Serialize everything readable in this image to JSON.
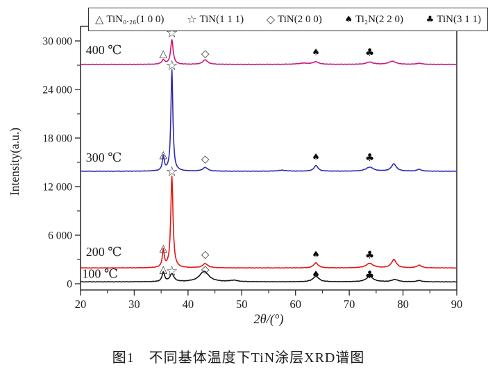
{
  "figure": {
    "caption": "图1　不同基体温度下TiN涂层XRD谱图"
  },
  "chart_data": {
    "type": "line",
    "title": "",
    "xlabel": "2θ/(°)",
    "ylabel": "Intensity(a.u.)",
    "xlim": [
      20,
      90
    ],
    "ylim": [
      0,
      31800
    ],
    "grid": false,
    "x_ticks": [
      20,
      30,
      40,
      50,
      60,
      70,
      80,
      90
    ],
    "x_minor_ticks": [
      25,
      35,
      45,
      55,
      65,
      75,
      85
    ],
    "y_ticks": [
      0,
      6000,
      12000,
      18000,
      24000,
      30000
    ],
    "y_tick_labels": [
      "0",
      "6 000",
      "12 000",
      "18 000",
      "24 000",
      "30 000"
    ],
    "y_minor_ticks": [
      3000,
      9000,
      15000,
      21000,
      27000
    ],
    "legend": {
      "position": "top",
      "items": [
        {
          "symbol": "△",
          "label": "TiN₀.₂₆(1 0 0)",
          "filled": false
        },
        {
          "symbol": "☆",
          "label": "TiN(1 1 1)",
          "filled": false
        },
        {
          "symbol": "◇",
          "label": "TiN(2 0 0)",
          "filled": false
        },
        {
          "symbol": "♠",
          "label": "Ti₂N(2 2 0)",
          "filled": true
        },
        {
          "symbol": "♣",
          "label": "TiN(3 1 1)",
          "filled": true
        }
      ]
    },
    "series": [
      {
        "name": "400 ℃",
        "color": "#c9177e",
        "baseline": 27100,
        "label_x": 21.0,
        "label_y": 28900,
        "peaks": [
          [
            35.4,
            520,
            0.35
          ],
          [
            37.0,
            3050,
            0.28
          ],
          [
            43.2,
            560,
            0.55
          ],
          [
            61.5,
            140,
            1.3
          ],
          [
            63.8,
            300,
            0.6
          ],
          [
            73.8,
            280,
            0.75
          ],
          [
            78.0,
            380,
            0.8
          ],
          [
            83.0,
            130,
            0.6
          ]
        ]
      },
      {
        "name": "300 ℃",
        "color": "#2b2bae",
        "baseline": 13900,
        "label_x": 21.0,
        "label_y": 15600,
        "peaks": [
          [
            35.4,
            1800,
            0.22
          ],
          [
            37.0,
            12500,
            0.22
          ],
          [
            43.2,
            460,
            0.55
          ],
          [
            57.5,
            120,
            0.9
          ],
          [
            63.8,
            700,
            0.45
          ],
          [
            73.8,
            500,
            0.8
          ],
          [
            78.3,
            900,
            0.55
          ],
          [
            83.0,
            220,
            0.5
          ]
        ]
      },
      {
        "name": "200 ℃",
        "color": "#e81414",
        "baseline": 1950,
        "label_x": 21.0,
        "label_y": 3950,
        "peaks": [
          [
            35.4,
            2150,
            0.22
          ],
          [
            37.0,
            11300,
            0.25
          ],
          [
            43.2,
            520,
            0.6
          ],
          [
            63.8,
            620,
            0.5
          ],
          [
            73.8,
            560,
            0.8
          ],
          [
            78.3,
            1020,
            0.55
          ],
          [
            83.0,
            330,
            0.5
          ]
        ]
      },
      {
        "name": "100 ℃",
        "color": "#151515",
        "baseline": 230,
        "label_x": 20.3,
        "label_y": 1250,
        "peaks": [
          [
            35.4,
            1150,
            0.28
          ],
          [
            37.0,
            960,
            0.45
          ],
          [
            43.0,
            1300,
            1.05
          ],
          [
            48.5,
            170,
            0.9
          ],
          [
            63.8,
            700,
            0.65
          ],
          [
            73.8,
            650,
            0.8
          ],
          [
            78.5,
            280,
            0.7
          ],
          [
            83.0,
            150,
            0.6
          ]
        ]
      }
    ],
    "markers": [
      {
        "glyph": "△",
        "x": 35.4,
        "y": 28450,
        "series": 0
      },
      {
        "glyph": "☆",
        "x": 37.0,
        "y": 31050,
        "series": 0
      },
      {
        "glyph": "◇",
        "x": 43.2,
        "y": 28450,
        "series": 0
      },
      {
        "glyph": "♠",
        "x": 63.8,
        "y": 28550,
        "series": 0
      },
      {
        "glyph": "♣",
        "x": 73.8,
        "y": 28600,
        "series": 0
      },
      {
        "glyph": "△",
        "x": 35.4,
        "y": 16000,
        "series": 1
      },
      {
        "glyph": "☆",
        "x": 37.0,
        "y": 27000,
        "series": 1
      },
      {
        "glyph": "◇",
        "x": 43.2,
        "y": 15450,
        "series": 1
      },
      {
        "glyph": "♠",
        "x": 63.8,
        "y": 15600,
        "series": 1
      },
      {
        "glyph": "♣",
        "x": 73.8,
        "y": 15600,
        "series": 1
      },
      {
        "glyph": "△",
        "x": 35.4,
        "y": 4400,
        "series": 2
      },
      {
        "glyph": "☆",
        "x": 37.0,
        "y": 13900,
        "series": 2
      },
      {
        "glyph": "◇",
        "x": 43.2,
        "y": 3650,
        "series": 2
      },
      {
        "glyph": "♠",
        "x": 63.8,
        "y": 3550,
        "series": 2
      },
      {
        "glyph": "♣",
        "x": 73.8,
        "y": 3550,
        "series": 2
      },
      {
        "glyph": "△",
        "x": 35.4,
        "y": 1780,
        "series": 3
      },
      {
        "glyph": "☆",
        "x": 37.0,
        "y": 1600,
        "series": 3
      },
      {
        "glyph": "◇",
        "x": 43.2,
        "y": 1780,
        "series": 3
      },
      {
        "glyph": "♠",
        "x": 63.8,
        "y": 1130,
        "series": 3
      },
      {
        "glyph": "♣",
        "x": 73.8,
        "y": 1130,
        "series": 3
      }
    ]
  }
}
